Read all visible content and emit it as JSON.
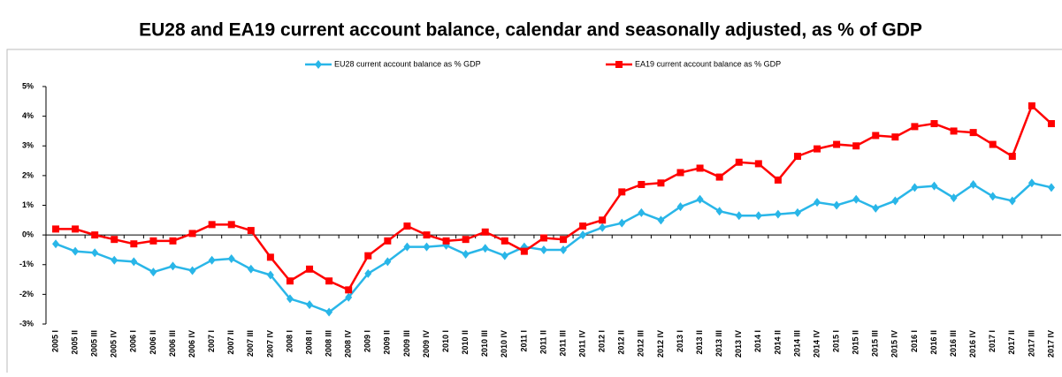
{
  "chart_data": {
    "type": "line",
    "title": "EU28 and EA19 current account balance, calendar and seasonally adjusted, as % of GDP",
    "categories": [
      "2005 I",
      "2005 II",
      "2005 III",
      "2005 IV",
      "2006 I",
      "2006 II",
      "2006 III",
      "2006 IV",
      "2007 I",
      "2007 II",
      "2007 III",
      "2007 IV",
      "2008 I",
      "2008 II",
      "2008 III",
      "2008 IV",
      "2009 I",
      "2009 II",
      "2009 III",
      "2009 IV",
      "2010 I",
      "2010 II",
      "2010 III",
      "2010 IV",
      "2011 I",
      "2011 II",
      "2011 III",
      "2011 IV",
      "2012 I",
      "2012 II",
      "2012 III",
      "2012 IV",
      "2013 I",
      "2013 II",
      "2013 III",
      "2013 IV",
      "2014 I",
      "2014 II",
      "2014 III",
      "2014 IV",
      "2015 I",
      "2015 II",
      "2015 III",
      "2015 IV",
      "2016 I",
      "2016 II",
      "2016 III",
      "2016 IV",
      "2017 I",
      "2017 II",
      "2017 III",
      "2017 IV"
    ],
    "series": [
      {
        "name": "EU28 current account balance as % GDP",
        "color": "#29b6e8",
        "marker": "diamond",
        "values": [
          -0.3,
          -0.55,
          -0.6,
          -0.85,
          -0.9,
          -1.25,
          -1.05,
          -1.2,
          -0.85,
          -0.8,
          -1.15,
          -1.35,
          -2.15,
          -2.35,
          -2.6,
          -2.1,
          -1.3,
          -0.9,
          -0.4,
          -0.4,
          -0.35,
          -0.65,
          -0.45,
          -0.7,
          -0.4,
          -0.5,
          -0.5,
          0.0,
          0.25,
          0.4,
          0.75,
          0.5,
          0.95,
          1.2,
          0.8,
          0.65,
          0.65,
          0.7,
          0.75,
          1.1,
          1.0,
          1.2,
          0.9,
          1.15,
          1.6,
          1.65,
          1.25,
          1.7,
          1.3,
          1.15,
          1.75,
          1.6
        ]
      },
      {
        "name": "EA19 current account balance as % GDP",
        "color": "#ff0000",
        "marker": "square",
        "values": [
          0.2,
          0.2,
          0.0,
          -0.15,
          -0.3,
          -0.2,
          -0.2,
          0.05,
          0.35,
          0.35,
          0.15,
          -0.75,
          -1.55,
          -1.15,
          -1.55,
          -1.85,
          -0.7,
          -0.2,
          0.3,
          0.0,
          -0.2,
          -0.15,
          0.1,
          -0.2,
          -0.55,
          -0.1,
          -0.15,
          0.3,
          0.5,
          1.45,
          1.7,
          1.75,
          2.1,
          2.25,
          1.95,
          2.45,
          2.4,
          1.85,
          2.65,
          2.9,
          3.05,
          3.0,
          3.35,
          3.3,
          3.65,
          3.75,
          3.5,
          3.45,
          3.05,
          2.65,
          4.35,
          3.75
        ]
      }
    ],
    "ylim": [
      -3,
      5
    ],
    "yticks": [
      {
        "value": -3,
        "label": "-3%"
      },
      {
        "value": -2,
        "label": "-2%"
      },
      {
        "value": -1,
        "label": "-1%"
      },
      {
        "value": 0,
        "label": "0%"
      },
      {
        "value": 1,
        "label": "1%"
      },
      {
        "value": 2,
        "label": "2%"
      },
      {
        "value": 3,
        "label": "3%"
      },
      {
        "value": 4,
        "label": "4%"
      },
      {
        "value": 5,
        "label": "5%"
      }
    ],
    "grid": false,
    "legend": "top"
  }
}
